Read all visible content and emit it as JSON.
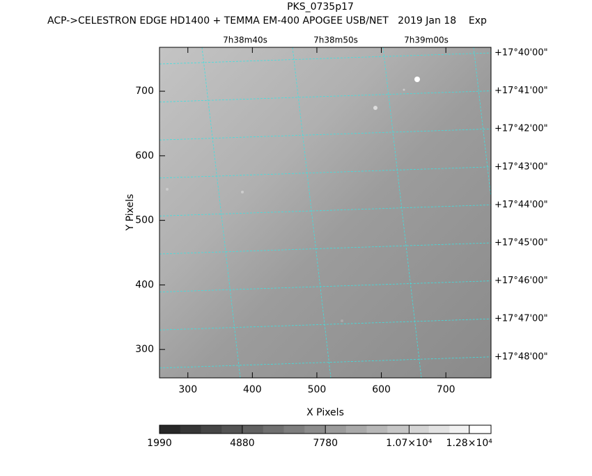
{
  "chart_data": {
    "type": "image",
    "title": "PKS_0735p17",
    "subtitle": "ACP->CELESTRON EDGE HD1400 + TEMMA EM-400 APOGEE USB/NET   2019 Jan 18    Exp",
    "x_label": "X Pixels",
    "y_label": "Y Pixels",
    "xlim": [
      256,
      770
    ],
    "ylim": [
      256,
      768
    ],
    "xticks": [
      300,
      400,
      500,
      600,
      700
    ],
    "yticks": [
      300,
      400,
      500,
      600,
      700
    ],
    "ra_labels": [
      "7h38m40s",
      "7h38m50s",
      "7h39m00s"
    ],
    "dec_labels": [
      "+17°40'00\"",
      "+17°41'00\"",
      "+17°42'00\"",
      "+17°43'00\"",
      "+17°44'00\"",
      "+17°45'00\"",
      "+17°46'00\"",
      "+17°47'00\"",
      "+17°48'00\""
    ],
    "clim": [
      1990,
      13560
    ],
    "cticks": [
      1990,
      4880,
      7780,
      {
        "value": 10700,
        "label": "1.07×10⁴"
      },
      {
        "value": 12800,
        "label": "1.28×10⁴"
      }
    ]
  }
}
